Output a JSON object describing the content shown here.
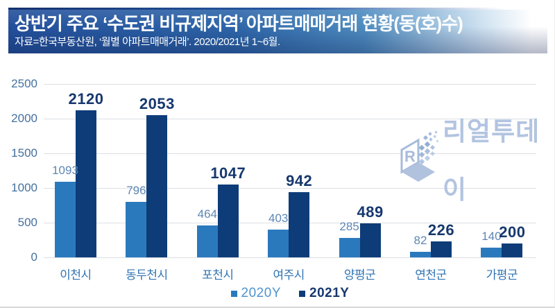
{
  "header": {
    "title": "상반기 주요 ‘수도권 비규제지역’ 아파트매매거래 현황(동(호)수)",
    "subtitle": "자료=한국부동산원, ‘월별 아파트매매거래’. 2020/2021년 1~6월."
  },
  "watermark": {
    "text": "리얼투데이",
    "cube_letter": "R"
  },
  "chart_data": {
    "type": "bar",
    "title": "상반기 주요 ‘수도권 비규제지역’ 아파트매매거래 현황(동(호)수)",
    "categories": [
      "이천시",
      "동두천시",
      "포천시",
      "여주시",
      "양평군",
      "연천군",
      "가평군"
    ],
    "series": [
      {
        "name": "2020Y",
        "color": "#2b79bd",
        "label_color": "#5d86b3",
        "legend_text_color": "#4f93cd",
        "legend_bold": false,
        "values": [
          1093,
          796,
          464,
          403,
          285,
          82,
          140
        ]
      },
      {
        "name": "2021Y",
        "color": "#0d3c78",
        "label_color": "#16386e",
        "legend_text_color": "#16386e",
        "legend_bold": true,
        "values": [
          2120,
          2053,
          1047,
          942,
          489,
          226,
          200
        ]
      }
    ],
    "xlabel": "",
    "ylabel": "",
    "ylim": [
      0,
      2500
    ],
    "yticks": [
      0,
      500,
      1000,
      1500,
      2000,
      2500
    ],
    "grid": true,
    "legend_position": "bottom"
  },
  "colors": {
    "grid": "#dcdfe4",
    "tick_label": "#44709f",
    "x_label": "#2f74b4",
    "bar_2020": "#2b79bd",
    "bar_2021": "#0d3c78",
    "header_band_left": "#24509b",
    "header_band_right": "#ffffff",
    "watermark": "#b2c4e0"
  }
}
